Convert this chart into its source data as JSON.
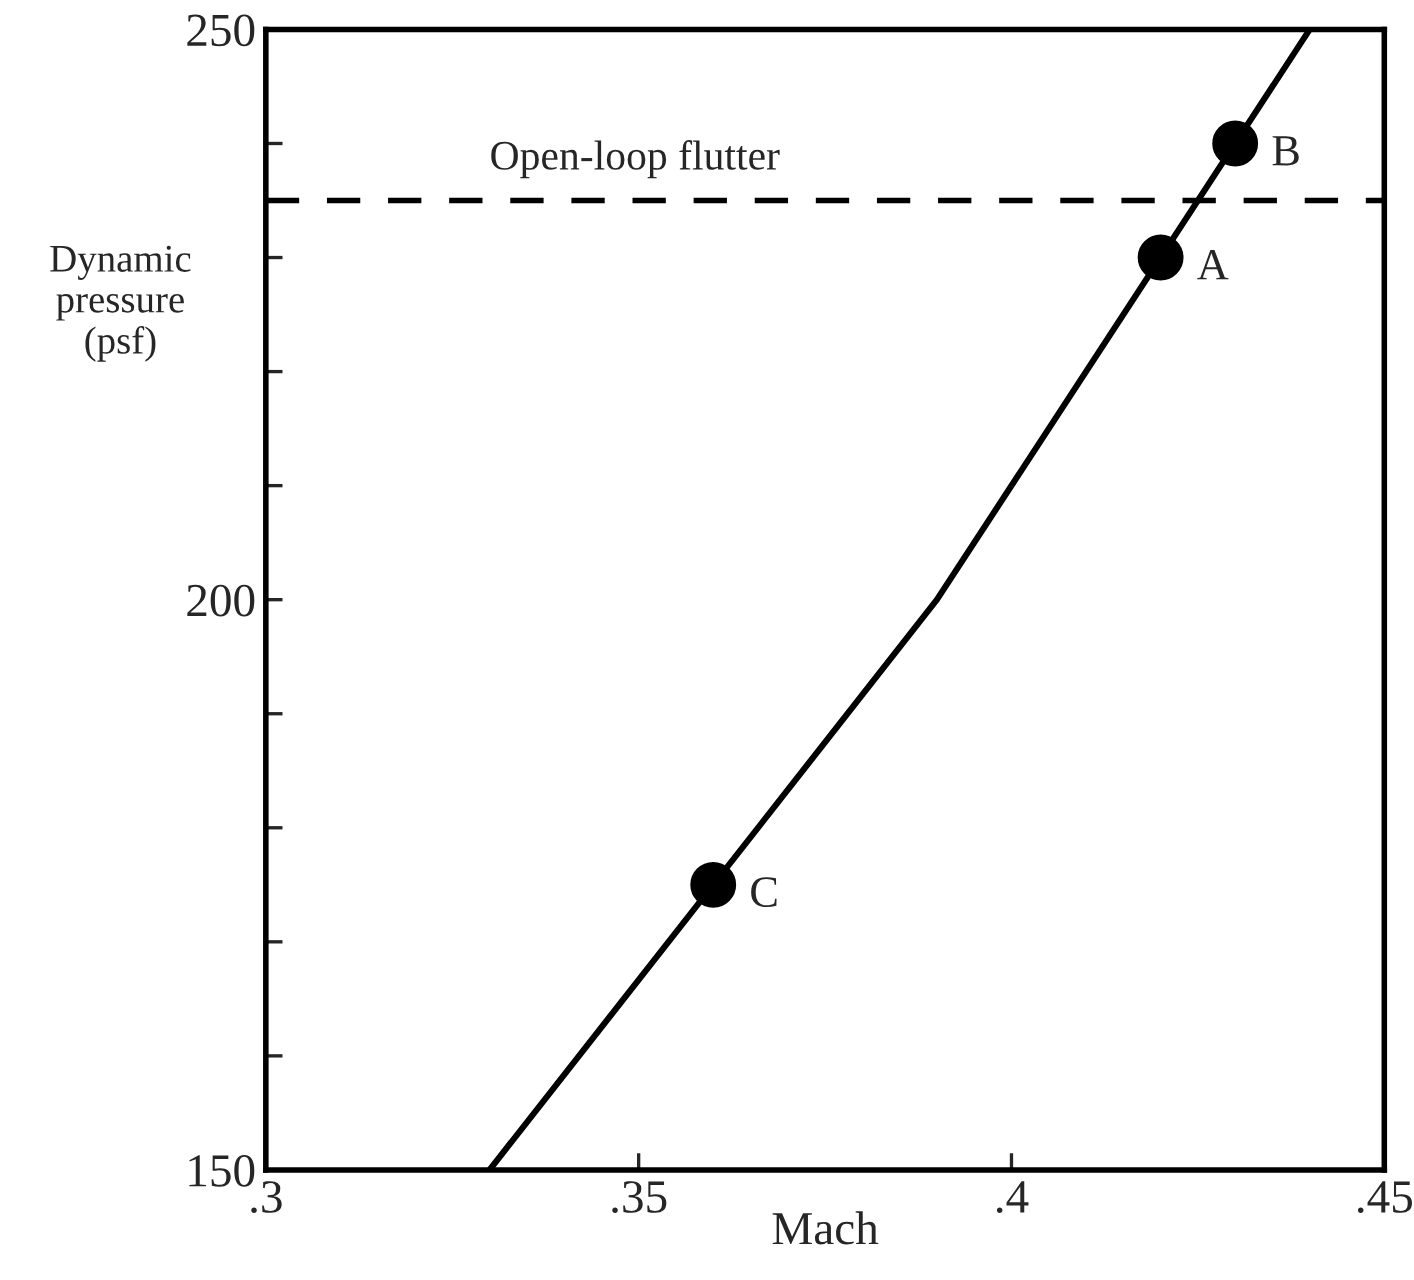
{
  "chart_data": {
    "type": "line",
    "xlabel": "Mach",
    "ylabel": "Dynamic\npressure\n(psf)",
    "series": [
      {
        "color": "#000000",
        "x": [
          0.33,
          0.39,
          0.44
        ],
        "values": [
          150,
          200,
          250
        ]
      },
      {
        "type": "scatter",
        "color": "#000000",
        "marker": "circle",
        "x": [
          0.36,
          0.42,
          0.43
        ],
        "values": [
          175,
          230,
          240
        ]
      }
    ],
    "xlim": [
      0.3,
      0.45
    ],
    "ylim": [
      150,
      250
    ],
    "xticks": [
      {
        "value": 0.3,
        "label": ".3"
      },
      {
        "value": 0.35,
        "label": ".35"
      },
      {
        "value": 0.4,
        "label": ".4"
      },
      {
        "value": 0.45,
        "label": ".45"
      }
    ],
    "yticks": [
      150,
      {
        "value": 160,
        "label": null
      },
      {
        "value": 170,
        "label": null
      },
      {
        "value": 180,
        "label": null
      },
      {
        "value": 190,
        "label": null
      },
      200,
      {
        "value": 210,
        "label": null
      },
      {
        "value": 220,
        "label": null
      },
      {
        "value": 230,
        "label": null
      },
      {
        "value": 240,
        "label": null
      },
      250
    ],
    "ref_lines": [
      {
        "axis": "y",
        "value": 235,
        "label": "Open-loop flutter",
        "line_style": "dashed",
        "color": "#000000"
      }
    ],
    "annotations": [
      {
        "text": "A",
        "x": 0.42,
        "y": 230
      },
      {
        "text": "B",
        "x": 0.43,
        "y": 240
      },
      {
        "text": "C",
        "x": 0.36,
        "y": 175
      }
    ],
    "grid": false,
    "legend": false
  }
}
